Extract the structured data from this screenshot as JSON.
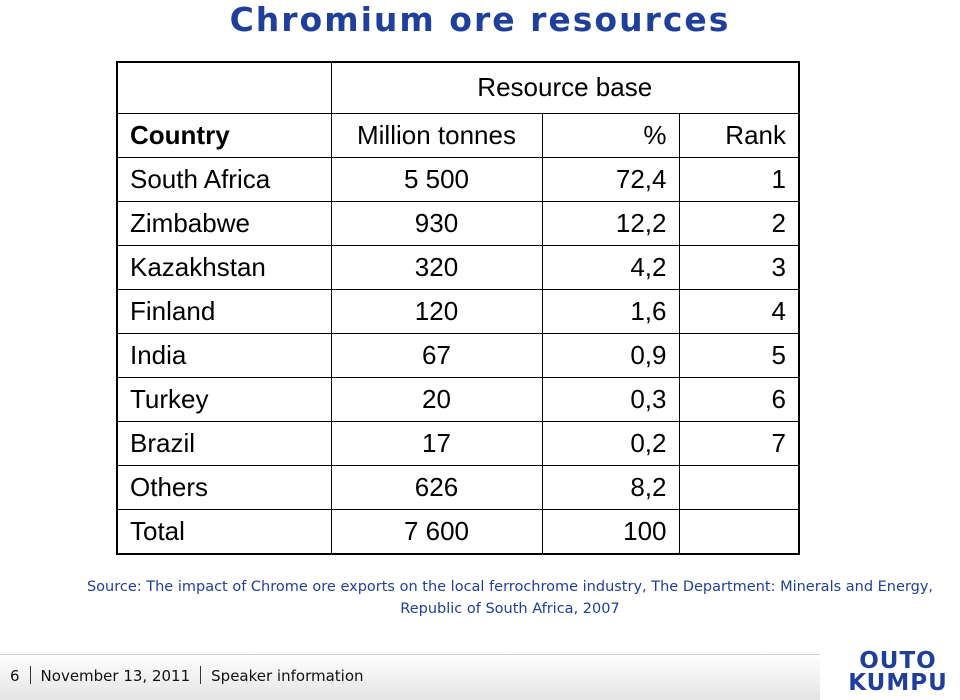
{
  "title": "Chromium ore resources",
  "table": {
    "group_header": "Resource base",
    "headers": [
      "Country",
      "Million tonnes",
      "%",
      "Rank"
    ],
    "rows": [
      [
        "South Africa",
        "5 500",
        "72,4",
        "1"
      ],
      [
        "Zimbabwe",
        "930",
        "12,2",
        "2"
      ],
      [
        "Kazakhstan",
        "320",
        "4,2",
        "3"
      ],
      [
        "Finland",
        "120",
        "1,6",
        "4"
      ],
      [
        "India",
        "67",
        "0,9",
        "5"
      ],
      [
        "Turkey",
        "20",
        "0,3",
        "6"
      ],
      [
        "Brazil",
        "17",
        "0,2",
        "7"
      ],
      [
        "Others",
        "626",
        "8,2",
        ""
      ],
      [
        "Total",
        "7 600",
        "100",
        ""
      ]
    ]
  },
  "source": "Source: The impact of Chrome ore exports on the local ferrochrome industry, The Department: Minerals and Energy, Republic of South Africa, 2007",
  "footer": {
    "page_number": "6",
    "date": "November 13, 2011",
    "speaker": "Speaker information"
  },
  "logo": {
    "line1": "OUTO",
    "line2": "KUMPU",
    "color": "#1f3f9a"
  },
  "colors": {
    "title": "#1f3f9a",
    "text": "#000000"
  }
}
